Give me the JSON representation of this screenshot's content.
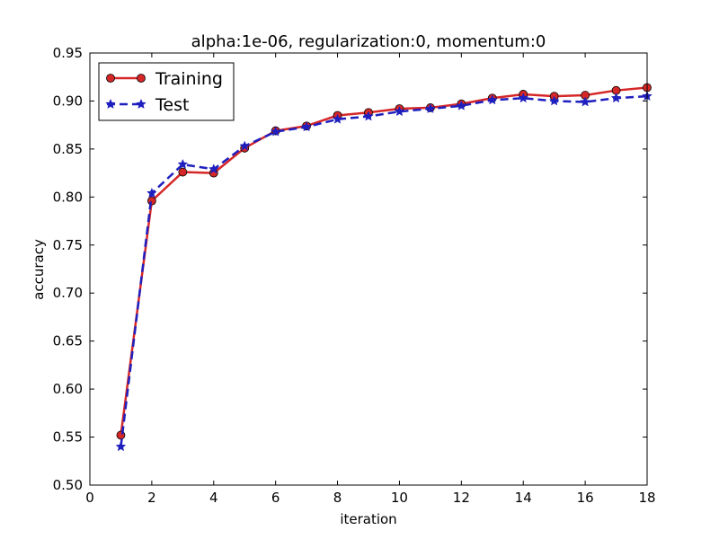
{
  "chart_data": {
    "type": "line",
    "title": "alpha:1e-06, regularization:0, momentum:0",
    "xlabel": "iteration",
    "ylabel": "accuracy",
    "xlim": [
      0,
      18
    ],
    "ylim": [
      0.5,
      0.95
    ],
    "xticks": [
      0,
      2,
      4,
      6,
      8,
      10,
      12,
      14,
      16,
      18
    ],
    "yticks": [
      0.5,
      0.55,
      0.6,
      0.65,
      0.7,
      0.75,
      0.8,
      0.85,
      0.9,
      0.95
    ],
    "grid": false,
    "legend_position": "top-left",
    "x": [
      1,
      2,
      3,
      4,
      5,
      6,
      7,
      8,
      9,
      10,
      11,
      12,
      13,
      14,
      15,
      16,
      17,
      18
    ],
    "series": [
      {
        "name": "Training",
        "color": "#d62728",
        "marker": "circle",
        "line_style": "solid",
        "values": [
          0.552,
          0.796,
          0.826,
          0.825,
          0.851,
          0.869,
          0.874,
          0.885,
          0.888,
          0.892,
          0.893,
          0.897,
          0.903,
          0.907,
          0.905,
          0.906,
          0.911,
          0.914
        ]
      },
      {
        "name": "Test",
        "color": "#1f1fbf",
        "marker": "star",
        "line_style": "dashed",
        "values": [
          0.54,
          0.804,
          0.834,
          0.829,
          0.853,
          0.868,
          0.873,
          0.881,
          0.884,
          0.889,
          0.892,
          0.895,
          0.901,
          0.903,
          0.9,
          0.899,
          0.903,
          0.905
        ]
      }
    ]
  }
}
